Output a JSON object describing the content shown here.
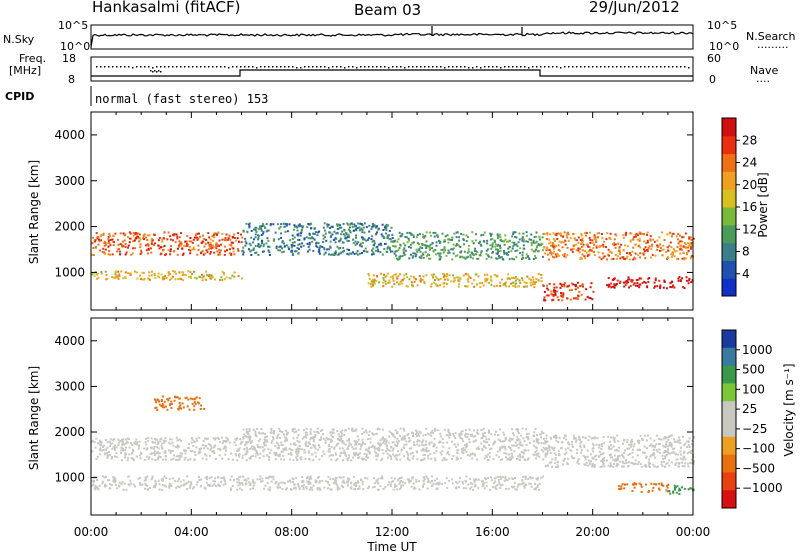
{
  "header": {
    "station": "Hankasalmi (fitACF)",
    "beam": "Beam 03",
    "date": "29/Jun/2012"
  },
  "sky_panel": {
    "left_label": "N.Sky",
    "right_label": "N.Search",
    "right_legend": ".........",
    "left_ticks": [
      "10^5",
      "10^0"
    ],
    "right_ticks": [
      "10^5",
      "10^0"
    ]
  },
  "freq_panel": {
    "left_label_line1": "Freq.",
    "left_label_line2": "[MHz]",
    "right_label": "Nave",
    "right_legend": "....",
    "left_ticks": [
      "18",
      "8"
    ],
    "right_ticks": [
      "60",
      "0"
    ]
  },
  "cpid": {
    "label": "CPID",
    "mode": "normal (fast stereo) 153"
  },
  "colors": {
    "power_scale": [
      "#1030c8",
      "#2050b0",
      "#3a7e8a",
      "#4a9a5a",
      "#78b93a",
      "#d8c020",
      "#f0a020",
      "#f07018",
      "#e83010",
      "#d01010"
    ],
    "velocity_scale": [
      "#1a3aa0",
      "#3a7aa0",
      "#3a9a4a",
      "#78c83a",
      "#c8c8c0",
      "#c8c8c0",
      "#f0a020",
      "#e87010",
      "#e84010",
      "#d81010"
    ]
  },
  "chart_data": [
    {
      "type": "heatmap",
      "title": "",
      "xlabel": "Time UT",
      "ylabel": "Slant Range [km]",
      "x_ticks": [
        "00:00",
        "04:00",
        "08:00",
        "12:00",
        "16:00",
        "20:00",
        "00:00"
      ],
      "y_ticks": [
        "1000",
        "2000",
        "3000",
        "4000"
      ],
      "ylim": [
        180,
        4500
      ],
      "xlim_hours": [
        0,
        24
      ],
      "colorbar": {
        "label": "Power [dB]",
        "ticks": [
          "4",
          "8",
          "12",
          "16",
          "20",
          "24",
          "28"
        ],
        "range": [
          0,
          30
        ]
      },
      "echo_bands": [
        {
          "t_start": 0.0,
          "t_end": 6.0,
          "range_center": 1650,
          "range_width": 500,
          "value": 24
        },
        {
          "t_start": 6.0,
          "t_end": 12.0,
          "range_center": 1750,
          "range_width": 700,
          "value": 8
        },
        {
          "t_start": 0.0,
          "t_end": 6.0,
          "range_center": 950,
          "range_width": 200,
          "value": 18
        },
        {
          "t_start": 12.0,
          "t_end": 18.0,
          "range_center": 1600,
          "range_width": 600,
          "value": 10
        },
        {
          "t_start": 11.0,
          "t_end": 18.0,
          "range_center": 850,
          "range_width": 300,
          "value": 18
        },
        {
          "t_start": 18.0,
          "t_end": 24.0,
          "range_center": 1600,
          "range_width": 600,
          "value": 22
        },
        {
          "t_start": 20.5,
          "t_end": 24.0,
          "range_center": 800,
          "range_width": 250,
          "value": 29
        },
        {
          "t_start": 18.0,
          "t_end": 20.0,
          "range_center": 600,
          "range_width": 400,
          "value": 26
        }
      ]
    },
    {
      "type": "heatmap",
      "title": "",
      "xlabel": "Time UT",
      "ylabel": "Slant Range [km]",
      "x_ticks": [
        "00:00",
        "04:00",
        "08:00",
        "12:00",
        "16:00",
        "20:00",
        "00:00"
      ],
      "y_ticks": [
        "1000",
        "2000",
        "3000",
        "4000"
      ],
      "ylim": [
        180,
        4500
      ],
      "xlim_hours": [
        0,
        24
      ],
      "colorbar": {
        "label": "Velocity [m s⁻¹]",
        "ticks": [
          "1000",
          "500",
          "100",
          "25",
          "−25",
          "−100",
          "−500",
          "−1000"
        ],
        "range": [
          -1000,
          1000
        ]
      },
      "echo_bands": [
        {
          "t_start": 0.0,
          "t_end": 6.0,
          "range_center": 1650,
          "range_width": 500,
          "value": 0
        },
        {
          "t_start": 6.0,
          "t_end": 18.0,
          "range_center": 1750,
          "range_width": 700,
          "value": 0
        },
        {
          "t_start": 0.0,
          "t_end": 18.0,
          "range_center": 900,
          "range_width": 300,
          "value": 0
        },
        {
          "t_start": 18.0,
          "t_end": 24.0,
          "range_center": 1600,
          "range_width": 700,
          "value": 0
        },
        {
          "t_start": 21.0,
          "t_end": 23.0,
          "range_center": 800,
          "range_width": 200,
          "value": -300
        },
        {
          "t_start": 2.5,
          "t_end": 4.5,
          "range_center": 2650,
          "range_width": 300,
          "value": -150
        },
        {
          "t_start": 23.0,
          "t_end": 24.0,
          "range_center": 750,
          "range_width": 200,
          "value": 150
        }
      ]
    }
  ]
}
